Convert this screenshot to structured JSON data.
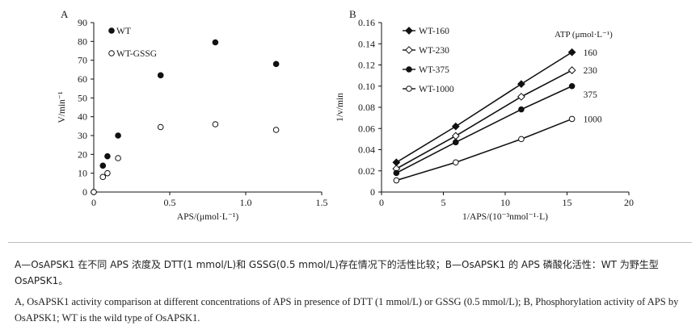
{
  "chart_data": [
    {
      "panel_label": "A",
      "type": "scatter",
      "title": "",
      "xlabel": "APS/(μmol·L⁻¹)",
      "ylabel": "V/min⁻¹",
      "xlim": [
        0,
        1.5
      ],
      "ylim": [
        0,
        90
      ],
      "xticks": [
        "0",
        "0.5",
        "1.0",
        "1.5"
      ],
      "yticks": [
        "0",
        "10",
        "20",
        "30",
        "40",
        "50",
        "60",
        "70",
        "80",
        "90"
      ],
      "legend_position": "top-left",
      "series": [
        {
          "name": "WT",
          "marker": "filled-circle",
          "x": [
            0.0,
            0.06,
            0.09,
            0.16,
            0.44,
            0.8,
            1.2
          ],
          "y": [
            0,
            14,
            19,
            30,
            62,
            79.5,
            68
          ]
        },
        {
          "name": "WT-GSSG",
          "marker": "open-circle",
          "x": [
            0.0,
            0.06,
            0.09,
            0.16,
            0.44,
            0.8,
            1.2
          ],
          "y": [
            0,
            8,
            10,
            18,
            34.5,
            36,
            33
          ]
        }
      ]
    },
    {
      "panel_label": "B",
      "type": "line",
      "title": "",
      "xlabel": "1/APS/(10⁻³nmol⁻¹·L)",
      "ylabel": "1/v/min",
      "xlim": [
        0,
        20
      ],
      "ylim": [
        0,
        0.16
      ],
      "xticks": [
        "0",
        "5",
        "10",
        "15",
        "20"
      ],
      "yticks": [
        "0",
        "0.02",
        "0.04",
        "0.06",
        "0.08",
        "0.10",
        "0.12",
        "0.14",
        "0.16"
      ],
      "legend_position": "top-left",
      "annotation_header": "ATP (μmol·L⁻¹)",
      "series": [
        {
          "name": "WT-160",
          "marker": "filled-diamond",
          "end_label": "160",
          "x": [
            1.2,
            6,
            11.3,
            15.4
          ],
          "y": [
            0.028,
            0.062,
            0.102,
            0.132
          ]
        },
        {
          "name": "WT-230",
          "marker": "open-diamond",
          "end_label": "230",
          "x": [
            1.2,
            6,
            11.3,
            15.4
          ],
          "y": [
            0.022,
            0.053,
            0.09,
            0.115
          ]
        },
        {
          "name": "WT-375",
          "marker": "filled-circle",
          "end_label": "375",
          "x": [
            1.2,
            6,
            11.3,
            15.4
          ],
          "y": [
            0.018,
            0.047,
            0.078,
            0.1
          ]
        },
        {
          "name": "WT-1000",
          "marker": "open-circle",
          "end_label": "1000",
          "x": [
            1.2,
            6,
            11.3,
            15.4
          ],
          "y": [
            0.011,
            0.028,
            0.05,
            0.069
          ]
        }
      ]
    }
  ],
  "caption": {
    "zh": "A—OsAPSK1 在不同 APS 浓度及 DTT(1 mmol/L)和 GSSG(0.5 mmol/L)存在情况下的活性比较；B—OsAPSK1 的 APS 磷酸化活性：WT 为野生型 OsAPSK1。",
    "en": "A, OsAPSK1 activity comparison at different concentrations of APS in presence of DTT (1 mmol/L) or GSSG (0.5 mmol/L); B, Phosphorylation activity of APS by OsAPSK1; WT is the wild type of OsAPSK1."
  }
}
